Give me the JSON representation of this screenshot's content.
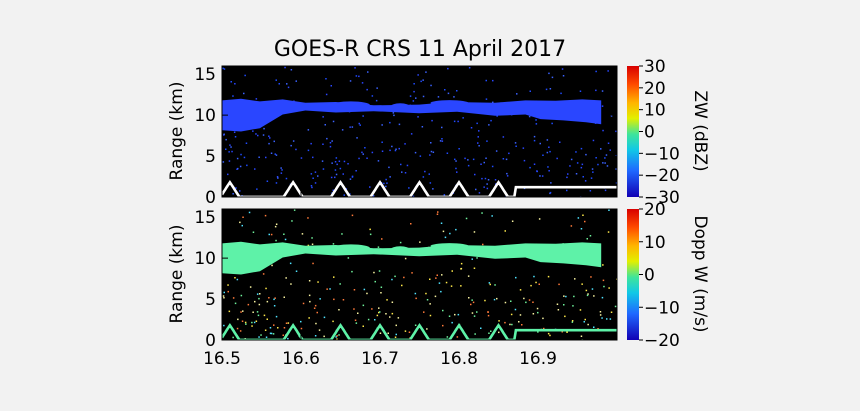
{
  "chart_data": [
    {
      "type": "heatmap",
      "title": "GOES-R CRS  11 April 2017",
      "ylabel": "Range (km)",
      "ylim": [
        0,
        16
      ],
      "yticks": [
        "0",
        "5",
        "10",
        "15"
      ],
      "xlim": [
        16.5,
        17.0
      ],
      "colorbar": {
        "label": "ZW (dBZ)",
        "range": [
          -30,
          30
        ],
        "ticks": [
          "30",
          "20",
          "10",
          "0",
          "−10",
          "−20",
          "−30"
        ]
      },
      "features": [
        {
          "name": "upper cloud layer",
          "x": [
            16.5,
            16.98
          ],
          "y": [
            8.0,
            12.0
          ],
          "value": -25
        },
        {
          "name": "lowest range gate / surface",
          "x": [
            16.5,
            17.0
          ],
          "y": [
            0.0,
            1.8
          ],
          "value": 30
        }
      ]
    },
    {
      "type": "heatmap",
      "ylabel": "Range (km)",
      "ylim": [
        0,
        16
      ],
      "yticks": [
        "0",
        "5",
        "10",
        "15"
      ],
      "xlim": [
        16.5,
        17.0
      ],
      "xticks": [
        "16.5",
        "16.6",
        "16.7",
        "16.8",
        "16.9"
      ],
      "colorbar": {
        "label": "Dopp W (m/s)",
        "range": [
          -20,
          20
        ],
        "ticks": [
          "20",
          "10",
          "0",
          "−10",
          "−20"
        ]
      },
      "features": [
        {
          "name": "upper cloud layer",
          "x": [
            16.5,
            16.98
          ],
          "y": [
            8.0,
            12.0
          ],
          "value": -3
        },
        {
          "name": "lowest range gate / surface",
          "x": [
            16.5,
            17.0
          ],
          "y": [
            0.0,
            1.8
          ],
          "value": -2
        }
      ]
    }
  ],
  "colors": {
    "panel_background": "#000000",
    "zw_cloud": "#2a46ff",
    "dopp_cloud": "#5ef2a8",
    "surface_line": "#ffffff",
    "page_background": "#f2f2f2"
  }
}
